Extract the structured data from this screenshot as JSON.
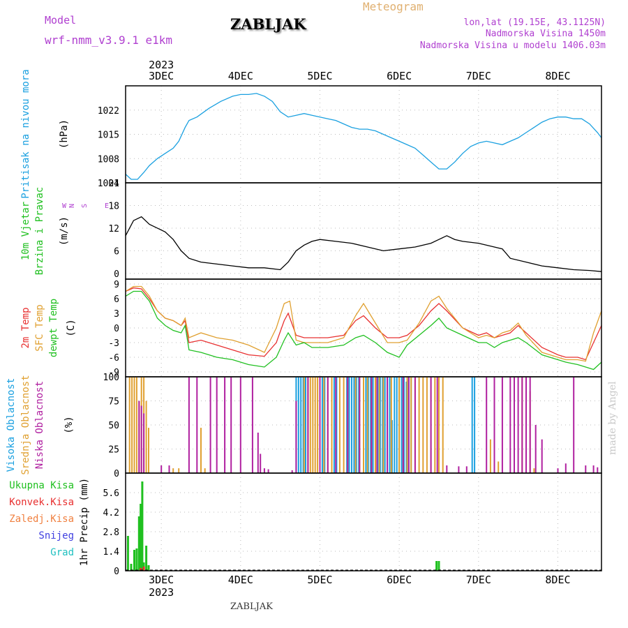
{
  "header": {
    "model_label": "Model",
    "model_name": "wrf-nmm_v3.9.1 e1km",
    "station": "ZABLJAK",
    "product": "Meteogram",
    "lonlat": "lon,lat (19.15E, 43.1125N)",
    "elevation": "Nadmorska Visina 1450m",
    "model_elevation": "Nadmorska Visina u modelu 1406.03m",
    "footer_station": "ZABLJAK",
    "watermark": "made by Angel"
  },
  "colors": {
    "pressure": "#1aa0e0",
    "wind_speed": "#000000",
    "t2m": "#e83030",
    "sfc": "#e0a030",
    "dew": "#20c020",
    "high_cloud": "#1aa0e0",
    "mid_cloud": "#e0a030",
    "low_cloud": "#b020a0",
    "total_precip": "#20c020",
    "conv_precip": "#e83030",
    "purple_label": "#b040d0"
  },
  "chart_data": [
    {
      "type": "line",
      "panel": "pressure",
      "ylabel": [
        "Pritisak na nivou mora",
        "(hPa)"
      ],
      "yticks": [
        1001,
        1008,
        1015,
        1022
      ],
      "ylim": [
        1001,
        1029
      ],
      "x_unit": "day of December 2023",
      "xlim": [
        2.55,
        8.55
      ],
      "xticks": [
        "3DEC",
        "4DEC",
        "5DEC",
        "6DEC",
        "7DEC",
        "8DEC"
      ],
      "xtick_values": [
        3,
        4,
        5,
        6,
        7,
        8
      ],
      "year": "2023",
      "grid": true,
      "series": [
        {
          "x": [
            2.55,
            2.62,
            2.7,
            2.78,
            2.85,
            2.95,
            3.05,
            3.15,
            3.22,
            3.3,
            3.35,
            3.45,
            3.6,
            3.75,
            3.9,
            4.0,
            4.1,
            4.2,
            4.3,
            4.4,
            4.5,
            4.6,
            4.7,
            4.8,
            4.9,
            5.0,
            5.1,
            5.2,
            5.3,
            5.4,
            5.5,
            5.6,
            5.7,
            5.8,
            5.9,
            6.0,
            6.1,
            6.2,
            6.3,
            6.4,
            6.5,
            6.6,
            6.7,
            6.8,
            6.9,
            7.0,
            7.1,
            7.2,
            7.3,
            7.4,
            7.5,
            7.6,
            7.7,
            7.8,
            7.9,
            8.0,
            8.1,
            8.2,
            8.3,
            8.4,
            8.5,
            8.55
          ],
          "values": [
            1003.5,
            1002.0,
            1002.0,
            1004.0,
            1006.0,
            1008.0,
            1009.5,
            1011.0,
            1013.0,
            1017.0,
            1019.0,
            1020.0,
            1022.5,
            1024.5,
            1026.0,
            1026.5,
            1026.5,
            1026.8,
            1026.0,
            1024.5,
            1021.5,
            1020.0,
            1020.5,
            1021.0,
            1020.5,
            1020.0,
            1019.5,
            1019.0,
            1018.0,
            1017.0,
            1016.5,
            1016.5,
            1016.0,
            1015.0,
            1014.0,
            1013.0,
            1012.0,
            1011.0,
            1009.0,
            1007.0,
            1005.0,
            1005.0,
            1007.0,
            1009.5,
            1011.5,
            1012.5,
            1013.0,
            1012.5,
            1012.0,
            1013.0,
            1014.0,
            1015.5,
            1017.0,
            1018.5,
            1019.5,
            1020.0,
            1020.0,
            1019.5,
            1019.5,
            1018.0,
            1015.5,
            1014.0
          ]
        }
      ]
    },
    {
      "type": "line",
      "panel": "wind",
      "ylabel": [
        "10m Vjetar",
        "Brzina i Pravac",
        "(m/s)"
      ],
      "direction_legend": [
        "N",
        "S",
        "E",
        "W"
      ],
      "yticks": [
        0,
        6,
        12,
        18,
        24
      ],
      "ylim": [
        -1.5,
        24
      ],
      "xlim": [
        2.55,
        8.55
      ],
      "grid": true,
      "series": [
        {
          "x": [
            2.55,
            2.65,
            2.75,
            2.85,
            2.95,
            3.05,
            3.15,
            3.25,
            3.35,
            3.5,
            3.7,
            3.9,
            4.1,
            4.3,
            4.5,
            4.6,
            4.7,
            4.8,
            4.9,
            5.0,
            5.2,
            5.4,
            5.6,
            5.8,
            6.0,
            6.2,
            6.4,
            6.5,
            6.6,
            6.7,
            6.8,
            7.0,
            7.2,
            7.3,
            7.4,
            7.6,
            7.8,
            8.0,
            8.2,
            8.4,
            8.55
          ],
          "values": [
            10.0,
            14.0,
            15.0,
            13.0,
            12.0,
            11.0,
            9.0,
            6.0,
            4.0,
            3.0,
            2.5,
            2.0,
            1.5,
            1.5,
            1.0,
            3.0,
            6.0,
            7.5,
            8.5,
            9.0,
            8.5,
            8.0,
            7.0,
            6.0,
            6.5,
            7.0,
            8.0,
            9.0,
            10.0,
            9.0,
            8.5,
            8.0,
            7.0,
            6.5,
            4.0,
            3.0,
            2.0,
            1.5,
            1.0,
            0.8,
            0.5
          ]
        }
      ]
    },
    {
      "type": "line",
      "panel": "temperature",
      "ylabel": [
        "2m Temp",
        "SFC Temp",
        "dewpt Temp",
        "(C)"
      ],
      "yticks": [
        -9,
        -6,
        -3,
        0,
        3,
        6,
        9
      ],
      "ylim": [
        -10,
        10
      ],
      "xlim": [
        2.55,
        8.55
      ],
      "grid": true,
      "series": [
        {
          "name": "2m Temp",
          "x": [
            2.55,
            2.65,
            2.75,
            2.85,
            2.95,
            3.05,
            3.15,
            3.25,
            3.3,
            3.35,
            3.5,
            3.7,
            3.9,
            4.1,
            4.3,
            4.45,
            4.55,
            4.6,
            4.7,
            4.8,
            4.9,
            5.1,
            5.3,
            5.45,
            5.55,
            5.7,
            5.85,
            6.0,
            6.1,
            6.25,
            6.4,
            6.5,
            6.6,
            6.8,
            7.0,
            7.1,
            7.2,
            7.3,
            7.4,
            7.5,
            7.6,
            7.8,
            8.0,
            8.1,
            8.25,
            8.35,
            8.45,
            8.55
          ],
          "values": [
            7.5,
            8.2,
            8.0,
            6.0,
            3.5,
            2.0,
            1.5,
            0.5,
            1.5,
            -3.0,
            -2.5,
            -3.5,
            -4.5,
            -5.5,
            -5.8,
            -3.0,
            1.5,
            3.0,
            -1.5,
            -2.0,
            -2.0,
            -2.0,
            -1.5,
            1.5,
            2.5,
            0.0,
            -2.0,
            -2.0,
            -1.5,
            0.5,
            3.5,
            5.0,
            3.5,
            0.0,
            -1.5,
            -1.0,
            -2.0,
            -1.5,
            -1.0,
            0.5,
            -1.0,
            -4.0,
            -5.5,
            -6.0,
            -6.0,
            -6.5,
            -3.0,
            0.5
          ]
        },
        {
          "name": "SFC Temp",
          "x": [
            2.55,
            2.65,
            2.75,
            2.85,
            2.95,
            3.05,
            3.15,
            3.25,
            3.3,
            3.35,
            3.5,
            3.7,
            3.9,
            4.1,
            4.3,
            4.45,
            4.55,
            4.62,
            4.7,
            4.8,
            4.9,
            5.1,
            5.3,
            5.45,
            5.55,
            5.7,
            5.85,
            6.0,
            6.1,
            6.25,
            6.4,
            6.5,
            6.6,
            6.8,
            7.0,
            7.1,
            7.2,
            7.3,
            7.4,
            7.5,
            7.6,
            7.8,
            8.0,
            8.1,
            8.25,
            8.35,
            8.45,
            8.55
          ],
          "values": [
            7.5,
            8.5,
            8.5,
            6.5,
            3.5,
            2.0,
            1.5,
            0.5,
            2.0,
            -2.0,
            -1.0,
            -2.0,
            -2.5,
            -3.5,
            -5.0,
            0.0,
            5.0,
            5.5,
            -2.5,
            -3.0,
            -3.0,
            -3.0,
            -2.0,
            2.5,
            5.0,
            1.0,
            -3.0,
            -3.0,
            -2.5,
            1.0,
            5.5,
            6.5,
            4.0,
            0.0,
            -2.0,
            -1.5,
            -2.0,
            -1.0,
            -0.5,
            1.0,
            -1.5,
            -5.0,
            -6.0,
            -6.5,
            -6.5,
            -6.8,
            -1.0,
            3.5
          ]
        },
        {
          "name": "dewpt Temp",
          "x": [
            2.55,
            2.65,
            2.75,
            2.85,
            2.95,
            3.05,
            3.15,
            3.25,
            3.3,
            3.35,
            3.5,
            3.7,
            3.9,
            4.1,
            4.3,
            4.45,
            4.55,
            4.6,
            4.7,
            4.8,
            4.9,
            5.1,
            5.3,
            5.45,
            5.55,
            5.7,
            5.85,
            6.0,
            6.1,
            6.25,
            6.4,
            6.5,
            6.6,
            6.8,
            7.0,
            7.1,
            7.2,
            7.3,
            7.4,
            7.5,
            7.6,
            7.8,
            8.0,
            8.1,
            8.25,
            8.35,
            8.45,
            8.55
          ],
          "values": [
            6.5,
            7.5,
            7.5,
            5.5,
            2.0,
            0.5,
            -0.5,
            -1.0,
            0.5,
            -4.5,
            -5.0,
            -6.0,
            -6.5,
            -7.5,
            -8.0,
            -6.0,
            -2.5,
            -1.0,
            -3.5,
            -3.0,
            -4.0,
            -4.0,
            -3.5,
            -2.0,
            -1.5,
            -3.0,
            -5.0,
            -6.0,
            -3.5,
            -1.5,
            0.5,
            2.0,
            0.0,
            -1.5,
            -3.0,
            -3.0,
            -4.0,
            -3.0,
            -2.5,
            -2.0,
            -3.0,
            -5.5,
            -6.5,
            -7.0,
            -7.5,
            -8.0,
            -8.5,
            -7.0
          ]
        }
      ]
    },
    {
      "type": "bar",
      "panel": "cloud",
      "ylabel": [
        "Visoka Oblacnost",
        "Srednja Oblacnost",
        "Niska Oblacnost",
        "(%)"
      ],
      "yticks": [
        0,
        25,
        50,
        75,
        100
      ],
      "ylim": [
        0,
        100
      ],
      "xlim": [
        2.55,
        8.55
      ],
      "grid": true,
      "series": [
        {
          "name": "Visoka Oblacnost",
          "x": [
            4.7,
            4.73,
            4.76,
            4.79,
            4.82,
            4.85,
            5.0,
            5.03,
            5.06,
            5.18,
            5.21,
            5.34,
            5.37,
            5.4,
            5.43,
            5.46,
            5.49,
            5.58,
            5.61,
            5.64,
            5.67,
            5.7,
            5.73,
            5.76,
            5.79,
            5.82,
            5.85,
            5.88,
            5.91,
            5.94,
            5.97,
            6.0,
            6.03,
            6.06,
            6.09,
            6.12,
            6.15,
            6.92,
            6.95
          ],
          "values": [
            100,
            100,
            100,
            100,
            100,
            100,
            100,
            100,
            100,
            100,
            100,
            100,
            100,
            100,
            100,
            100,
            100,
            100,
            100,
            100,
            100,
            100,
            100,
            100,
            100,
            100,
            100,
            100,
            55,
            100,
            100,
            100,
            100,
            100,
            95,
            100,
            100,
            100,
            100
          ]
        },
        {
          "name": "Srednja Oblacnost",
          "x": [
            2.6,
            2.63,
            2.66,
            2.69,
            2.72,
            2.75,
            2.78,
            2.81,
            2.84,
            3.15,
            3.22,
            3.5,
            3.55,
            4.8,
            4.85,
            4.88,
            4.91,
            4.94,
            4.97,
            5.0,
            5.05,
            5.1,
            5.15,
            5.25,
            5.3,
            5.35,
            5.45,
            5.5,
            5.55,
            5.6,
            5.65,
            5.7,
            5.75,
            5.8,
            5.9,
            6.0,
            6.05,
            6.1,
            6.15,
            6.2,
            6.25,
            6.3,
            6.35,
            6.4,
            6.45,
            6.5,
            6.55,
            7.15,
            7.2,
            7.25,
            7.55,
            7.6,
            7.65,
            7.7
          ],
          "values": [
            100,
            100,
            100,
            100,
            75,
            100,
            100,
            75,
            47,
            5,
            5,
            47,
            5,
            100,
            100,
            100,
            100,
            100,
            100,
            100,
            100,
            100,
            100,
            100,
            100,
            100,
            100,
            100,
            100,
            100,
            100,
            100,
            100,
            100,
            100,
            100,
            100,
            100,
            100,
            100,
            100,
            100,
            100,
            100,
            100,
            100,
            100,
            35,
            35,
            12,
            100,
            100,
            85,
            5
          ]
        },
        {
          "name": "Niska Oblacnost",
          "x": [
            2.72,
            2.75,
            2.78,
            3.0,
            3.1,
            3.35,
            3.45,
            3.62,
            3.7,
            3.8,
            3.88,
            4.0,
            4.15,
            4.22,
            4.25,
            4.3,
            4.35,
            4.65,
            4.7,
            4.85,
            5.0,
            5.1,
            5.2,
            5.35,
            5.5,
            5.65,
            5.72,
            5.85,
            6.05,
            6.12,
            6.2,
            6.4,
            6.48,
            6.6,
            6.75,
            6.85,
            7.1,
            7.2,
            7.3,
            7.4,
            7.45,
            7.5,
            7.55,
            7.6,
            7.65,
            7.72,
            7.8,
            8.0,
            8.1,
            8.2,
            8.35,
            8.45,
            8.5
          ],
          "values": [
            75,
            70,
            62,
            8,
            8,
            100,
            100,
            100,
            100,
            100,
            100,
            100,
            100,
            42,
            20,
            5,
            4,
            3,
            75,
            100,
            100,
            100,
            100,
            100,
            100,
            100,
            100,
            100,
            100,
            100,
            100,
            100,
            100,
            8,
            7,
            7,
            100,
            100,
            100,
            100,
            100,
            100,
            100,
            100,
            100,
            50,
            35,
            5,
            10,
            100,
            8,
            8,
            6
          ]
        }
      ]
    },
    {
      "type": "bar",
      "panel": "precip",
      "ylabel": [
        "1hr Precip (mm)"
      ],
      "legend": [
        "Ukupna Kisa",
        "Konvek.Kisa",
        "Zaledj.Kisa",
        "Snijeg",
        "Grad"
      ],
      "yticks": [
        0,
        1.4,
        2.8,
        4.2,
        5.6
      ],
      "ylim": [
        0,
        7
      ],
      "xlim": [
        2.55,
        8.55
      ],
      "grid": true,
      "series": [
        {
          "name": "Ukupna Kisa",
          "x": [
            2.58,
            2.62,
            2.66,
            2.69,
            2.72,
            2.74,
            2.76,
            2.78,
            2.81,
            2.84,
            6.47,
            6.5
          ],
          "values": [
            2.5,
            0.5,
            1.5,
            1.6,
            3.9,
            4.8,
            6.4,
            0.6,
            1.8,
            0.4,
            0.7,
            0.7
          ]
        },
        {
          "name": "Konvek.Kisa",
          "x": [
            2.74,
            2.78
          ],
          "values": [
            0.2,
            0.3
          ]
        }
      ]
    }
  ]
}
